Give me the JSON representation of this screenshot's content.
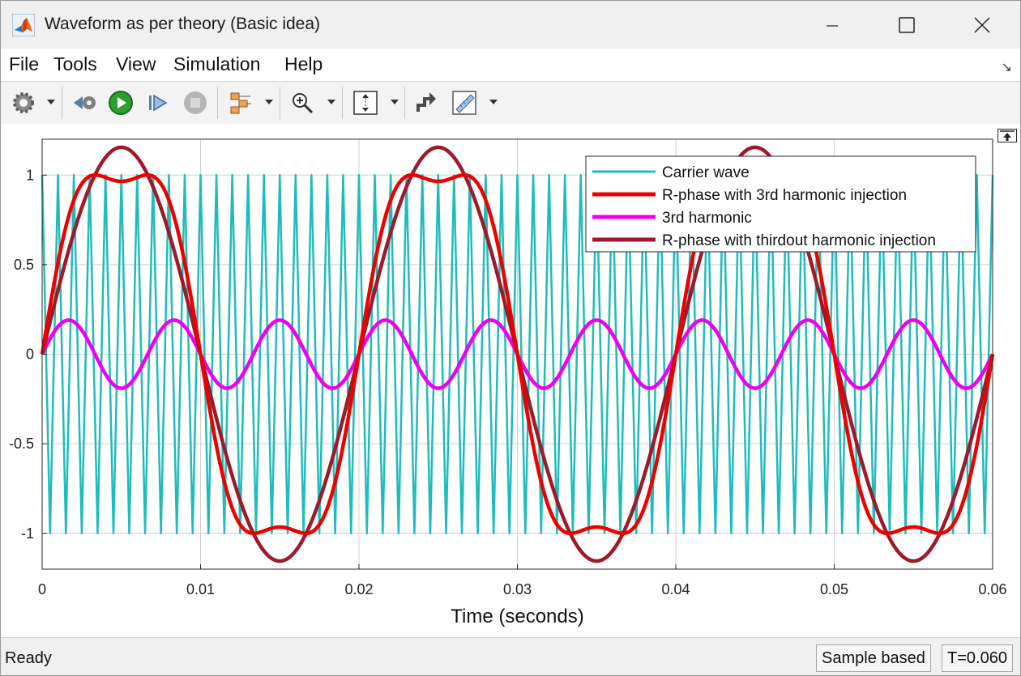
{
  "window": {
    "title": "Waveform as per theory (Basic idea)",
    "icon": "matlab-logo-icon"
  },
  "menu": {
    "items": [
      "File",
      "Tools",
      "View",
      "Simulation",
      "Help"
    ]
  },
  "toolbar": {
    "icons": [
      "settings-icon",
      "step-back-icon",
      "run-icon",
      "step-forward-icon",
      "stop-icon",
      "signal-selector-icon",
      "zoom-icon",
      "autoscale-icon",
      "highlight-simulink-block-icon",
      "measurement-icon"
    ]
  },
  "chart_data": {
    "type": "line",
    "xlabel": "Time (seconds)",
    "ylabel": "",
    "xlim": [
      0,
      0.06
    ],
    "ylim": [
      -1.2,
      1.2
    ],
    "xticks": [
      0,
      0.01,
      0.02,
      0.03,
      0.04,
      0.05,
      0.06
    ],
    "xtick_labels": [
      "0",
      "0.01",
      "0.02",
      "0.03",
      "0.04",
      "0.05",
      "0.06"
    ],
    "yticks": [
      -1,
      -0.5,
      0,
      0.5,
      1
    ],
    "ytick_labels": [
      "-1",
      "-0.5",
      "0",
      "0.5",
      "1"
    ],
    "grid": true,
    "legend_position": "top-right",
    "series": [
      {
        "name": "Carrier wave",
        "color": "#1fbcbc",
        "kind": "triangle",
        "frequency_hz": 1000,
        "min": -1,
        "max": 1
      },
      {
        "name": "R-phase with 3rd harmonic injection",
        "color": "#ee0000",
        "kind": "sine_plus_third",
        "frequency_hz": 50,
        "fundamental_amplitude": 1.155,
        "third_amplitude": 0.19
      },
      {
        "name": "3rd harmonic",
        "color": "#ee00ee",
        "kind": "sine",
        "frequency_hz": 150,
        "amplitude": 0.19
      },
      {
        "name": "R-phase with thirdout harmonic injection",
        "color": "#9c1a2a",
        "kind": "sine",
        "frequency_hz": 50,
        "amplitude": 1.155
      }
    ]
  },
  "status": {
    "ready": "Ready",
    "mode": "Sample based",
    "time": "T=0.060"
  }
}
